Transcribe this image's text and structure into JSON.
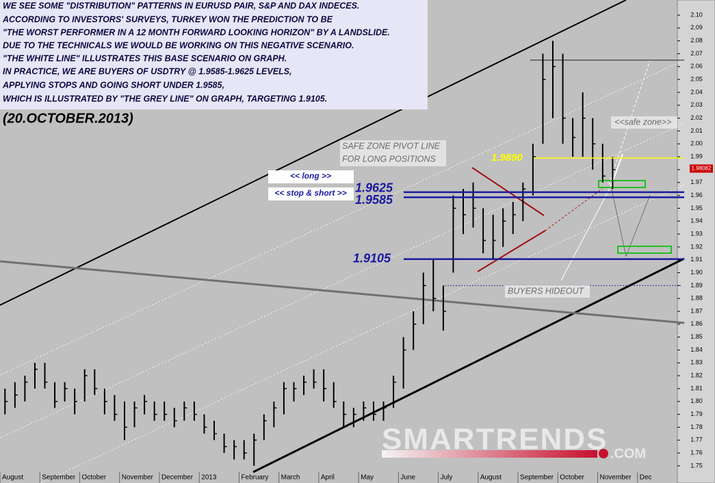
{
  "text_block": [
    "WE SEE SOME \"DISTRIBUTION\" PATTERNS IN EURUSD PAIR, S&P AND DAX INDECES.",
    "ACCORDING TO INVESTORS' SURVEYS, TURKEY WON THE PREDICTION TO BE",
    "\"THE WORST PERFORMER IN A 12 MONTH FORWARD LOOKING HORIZON\" BY A LANDSLIDE.",
    "DUE TO THE TECHNICALS WE WOULD BE WORKING ON THIS NEGATIVE SCENARIO.",
    "\"THE WHITE LINE\" ILLUSTRATES THIS BASE SCENARIO ON GRAPH.",
    "IN PRACTICE, WE ARE BUYERS OF USDTRY @ 1.9585-1.9625 LEVELS,",
    "APPLYING STOPS AND GOING SHORT UNDER 1.9585,",
    "WHICH IS ILLUSTRATED BY \"THE GREY LINE\" ON GRAPH, TARGETING  1.9105."
  ],
  "date": "(20.OCTOBER.2013)",
  "logo": {
    "name": "SMARTRENDS",
    "suffix": ".COM"
  },
  "chart_data": {
    "type": "ohlc",
    "color": "#000000",
    "categories": [
      "August",
      null,
      null,
      null,
      "September",
      null,
      null,
      null,
      "October",
      null,
      null,
      null,
      "November",
      null,
      null,
      null,
      "December",
      null,
      null,
      null,
      "2013",
      null,
      null,
      null,
      "February",
      null,
      null,
      null,
      "March",
      null,
      null,
      null,
      "April",
      null,
      null,
      null,
      "May",
      null,
      null,
      null,
      "June",
      null,
      null,
      null,
      "July",
      null,
      null,
      null,
      "August",
      null,
      null,
      null,
      "September",
      null,
      null,
      null,
      "October",
      null,
      null,
      null,
      "November",
      null,
      null,
      null,
      "Dec",
      null,
      null,
      null
    ],
    "high": [
      1.81,
      1.815,
      1.82,
      1.83,
      1.83,
      1.815,
      1.815,
      1.81,
      1.825,
      1.825,
      1.81,
      1.805,
      1.8,
      1.8,
      1.805,
      1.8,
      1.8,
      1.795,
      1.8,
      1.8,
      1.79,
      1.785,
      1.775,
      1.77,
      1.77,
      1.775,
      1.79,
      1.8,
      1.815,
      1.815,
      1.82,
      1.825,
      1.825,
      1.815,
      1.8,
      1.795,
      1.8,
      1.8,
      1.8,
      1.82,
      1.85,
      1.87,
      1.9,
      1.91,
      1.89,
      1.96,
      1.965,
      1.97,
      1.95,
      1.945,
      1.95,
      1.955,
      1.97,
      2.0,
      2.07,
      2.08,
      2.07,
      2.02,
      2.04,
      2.02,
      2.0,
      1.99,
      null,
      null,
      null,
      null,
      null,
      null
    ],
    "low": [
      1.79,
      1.795,
      1.8,
      1.81,
      1.81,
      1.795,
      1.8,
      1.79,
      1.8,
      1.805,
      1.79,
      1.785,
      1.77,
      1.78,
      1.79,
      1.785,
      1.785,
      1.78,
      1.785,
      1.785,
      1.775,
      1.77,
      1.76,
      1.755,
      1.755,
      1.75,
      1.77,
      1.78,
      1.79,
      1.8,
      1.805,
      1.81,
      1.8,
      1.795,
      1.78,
      1.78,
      1.785,
      1.785,
      1.785,
      1.795,
      1.81,
      1.84,
      1.86,
      1.87,
      1.855,
      1.9,
      1.93,
      1.935,
      1.915,
      1.91,
      1.92,
      1.93,
      1.94,
      1.96,
      2.0,
      2.02,
      2.0,
      1.99,
      1.99,
      1.98,
      1.97,
      1.965,
      null,
      null,
      null,
      null,
      null,
      null
    ],
    "close": [
      1.8,
      1.805,
      1.815,
      1.825,
      1.815,
      1.8,
      1.81,
      1.8,
      1.82,
      1.81,
      1.8,
      1.79,
      1.78,
      1.795,
      1.8,
      1.79,
      1.79,
      1.785,
      1.795,
      1.79,
      1.78,
      1.775,
      1.765,
      1.765,
      1.76,
      1.77,
      1.785,
      1.795,
      1.81,
      1.81,
      1.815,
      1.815,
      1.81,
      1.8,
      1.79,
      1.79,
      1.795,
      1.79,
      1.795,
      1.815,
      1.84,
      1.86,
      1.89,
      1.88,
      1.87,
      1.95,
      1.945,
      1.95,
      1.925,
      1.925,
      1.94,
      1.945,
      1.965,
      1.99,
      2.05,
      2.06,
      2.02,
      2.005,
      2.02,
      2.0,
      1.975,
      1.98,
      null,
      null,
      null,
      null,
      null,
      null
    ],
    "ylim": [
      1.7367,
      2.1117
    ],
    "yticks": [
      1.75,
      1.76,
      1.77,
      1.78,
      1.79,
      {
        "value": 1.8,
        "label": "1.80"
      },
      1.81,
      1.82,
      1.83,
      1.84,
      1.85,
      1.86,
      1.87,
      1.88,
      1.89,
      {
        "value": 1.9,
        "label": "1.90"
      },
      1.91,
      1.92,
      1.93,
      1.94,
      1.95,
      1.96,
      1.97,
      1.98,
      1.99,
      {
        "value": 2.0,
        "label": "2.00"
      },
      2.01,
      2.02,
      2.03,
      2.04,
      2.05,
      2.06,
      2.07,
      2.08,
      2.09,
      {
        "value": 2.1,
        "label": "2.10"
      }
    ],
    "last_price": 1.98082,
    "levels": [
      {
        "value": 1.9625,
        "tag": "<< long >>",
        "color": "#1a1aa0"
      },
      {
        "value": 1.9585,
        "tag": "<< stop & short >>",
        "color": "#1a1aa0"
      },
      {
        "value": 1.9105,
        "color": "#1a1aa0"
      },
      {
        "value": 1.989,
        "label": "1.9890",
        "color": "#ffff00"
      }
    ],
    "guides": [
      {
        "value": 2.065,
        "color": "#555555"
      },
      {
        "value": 1.89,
        "color": "#2a2aa0"
      }
    ],
    "annotations": [
      "SAFE ZONE PIVOT LINE",
      "FOR LONG POSITIONS",
      "<<safe zone>>",
      "BUYERS HIDEOUT"
    ]
  }
}
